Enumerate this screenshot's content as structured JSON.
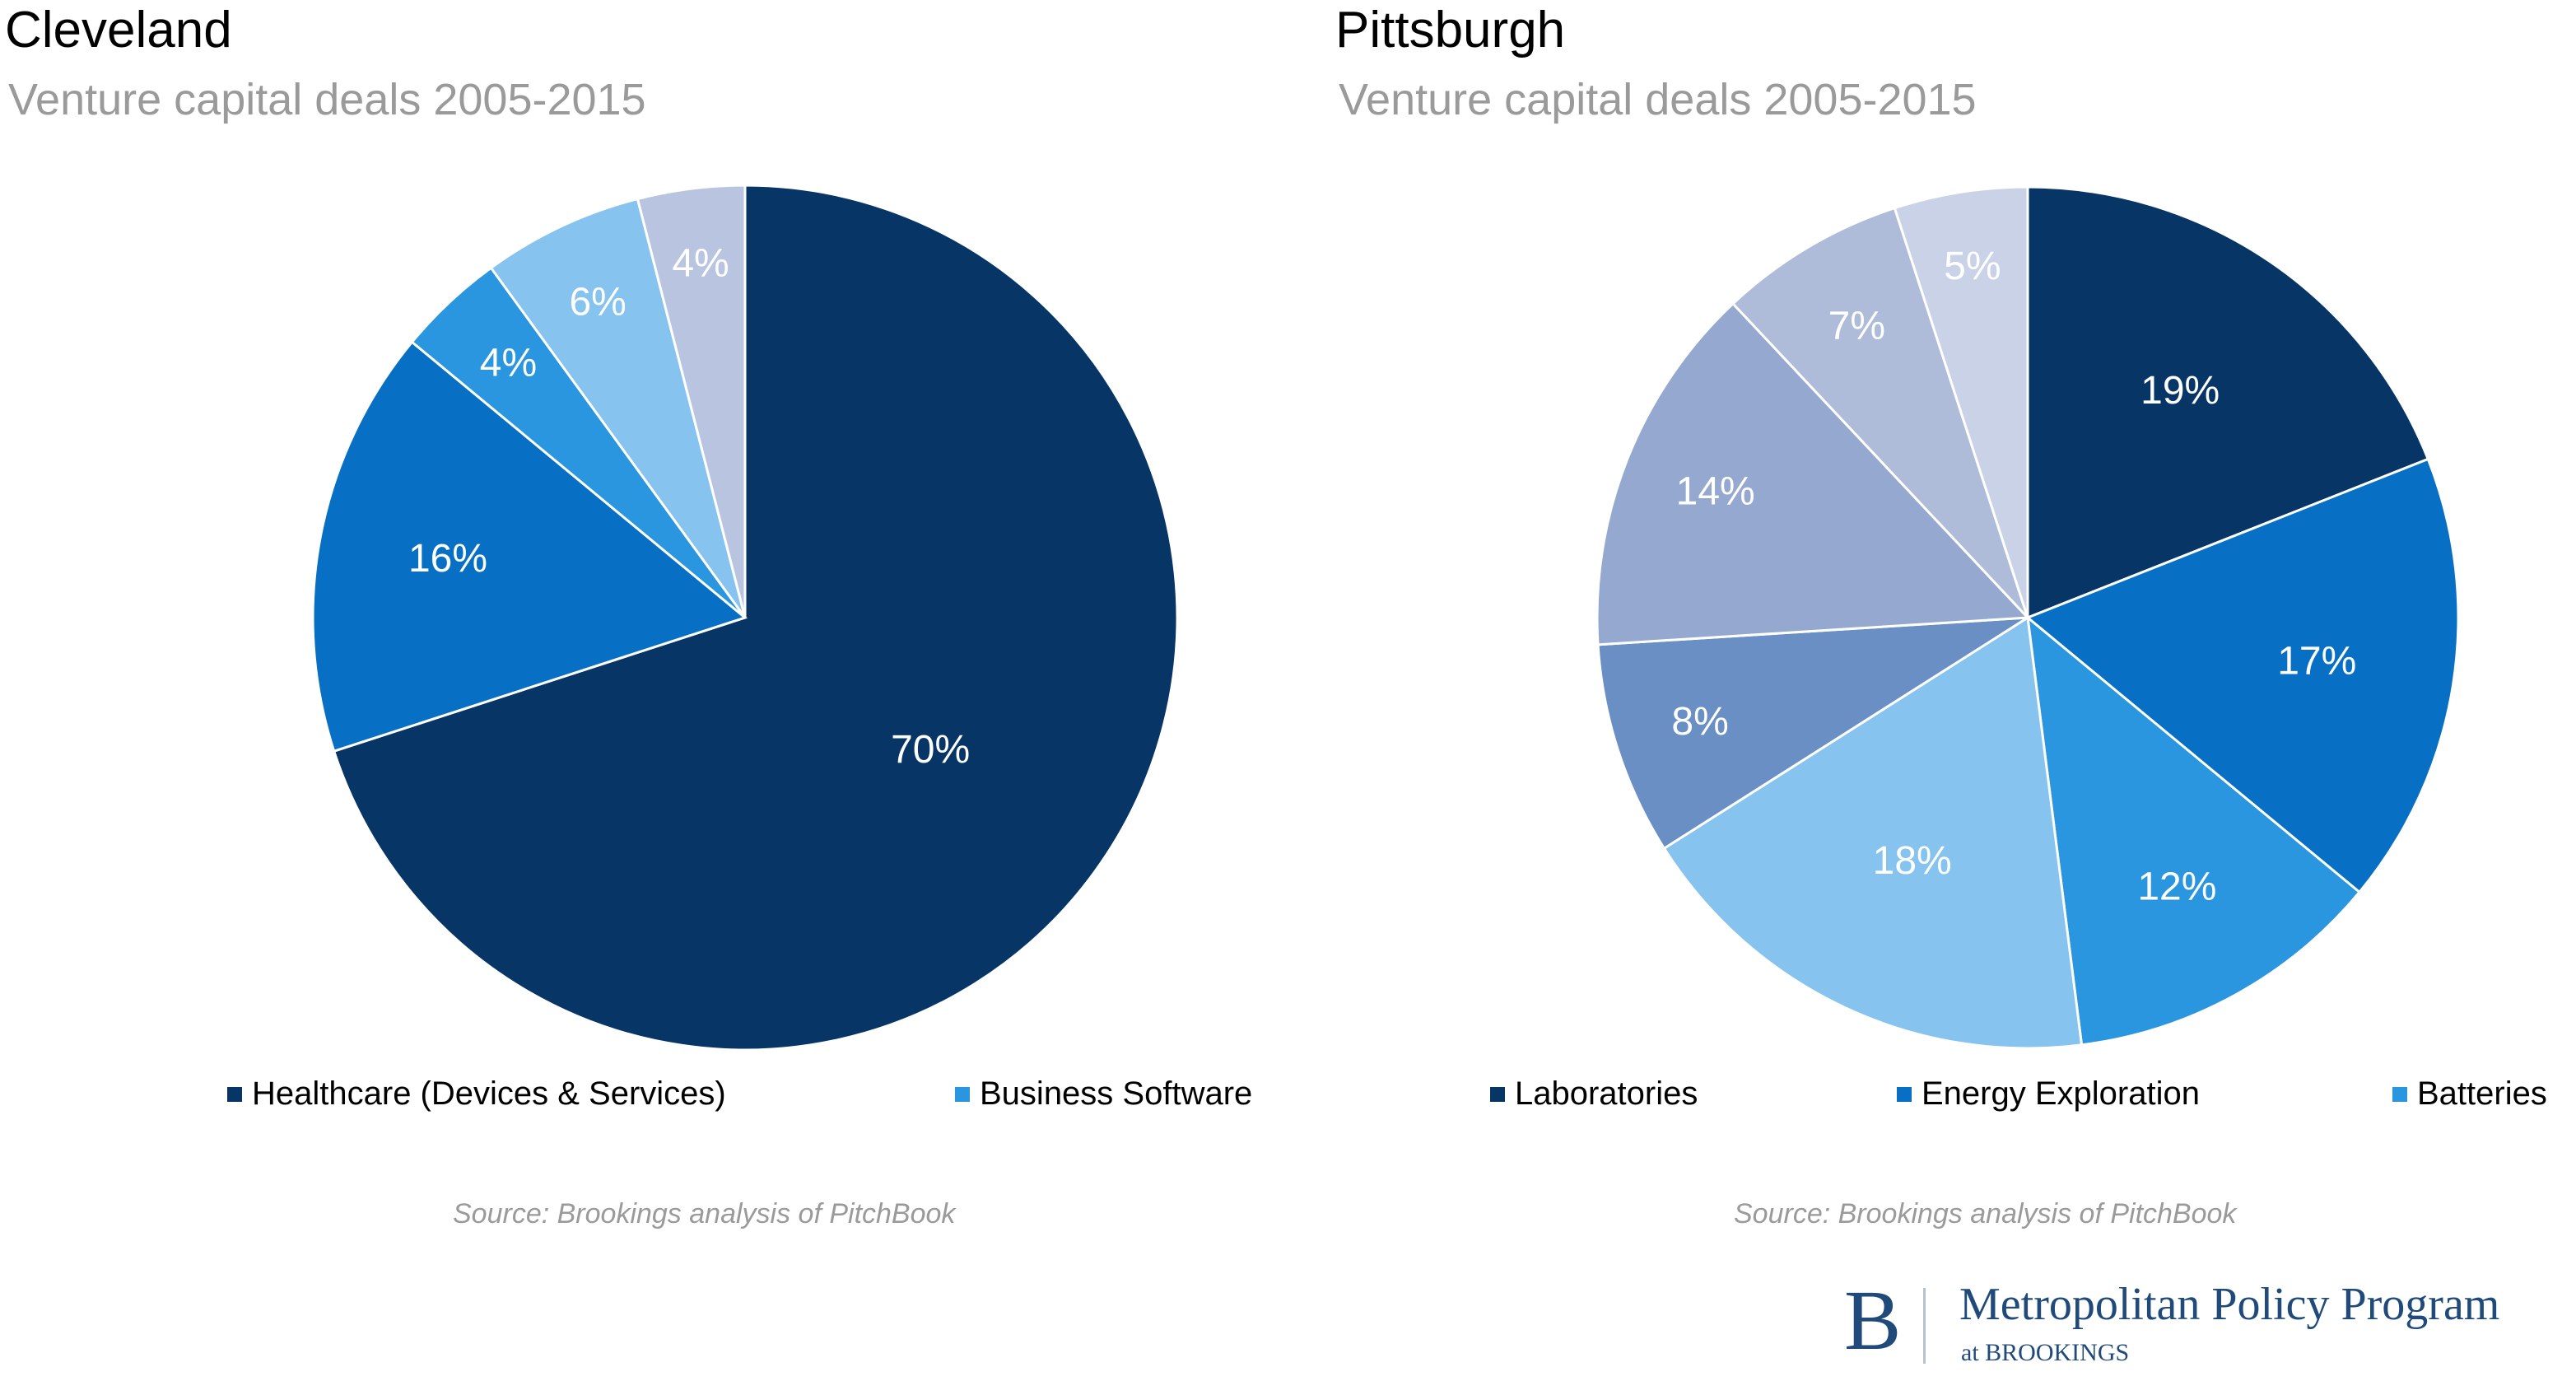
{
  "chart_data": [
    {
      "type": "pie",
      "title": "Cleveland",
      "subtitle": "Venture capital deals 2005-2015",
      "source": "Source: Brookings analysis of PitchBook",
      "slices": [
        {
          "label": "Healthcare (Devices & Services)",
          "value": 70,
          "text": "70%",
          "color": "#063566",
          "in_legend": true
        },
        {
          "label": "",
          "value": 16,
          "text": "16%",
          "color": "#0870c4",
          "in_legend": false
        },
        {
          "label": "Business Software",
          "value": 4,
          "text": "4%",
          "color": "#2a96e0",
          "in_legend": true
        },
        {
          "label": "",
          "value": 6,
          "text": "6%",
          "color": "#86c3ef",
          "in_legend": false
        },
        {
          "label": "",
          "value": 4,
          "text": "4%",
          "color": "#b9c5e0",
          "in_legend": false
        }
      ],
      "legend": [
        "Healthcare (Devices & Services)",
        "Business Software"
      ]
    },
    {
      "type": "pie",
      "title": "Pittsburgh",
      "subtitle": "Venture capital deals 2005-2015",
      "source": "Source: Brookings analysis of PitchBook",
      "slices": [
        {
          "label": "Laboratories",
          "value": 19,
          "text": "19%",
          "color": "#063566",
          "in_legend": true
        },
        {
          "label": "Energy Exploration",
          "value": 17,
          "text": "17%",
          "color": "#0870c4",
          "in_legend": true
        },
        {
          "label": "Batteries",
          "value": 12,
          "text": "12%",
          "color": "#2a96e0",
          "in_legend": true
        },
        {
          "label": "",
          "value": 18,
          "text": "18%",
          "color": "#86c3ef",
          "in_legend": false
        },
        {
          "label": "",
          "value": 8,
          "text": "8%",
          "color": "#6a8fc4",
          "in_legend": false
        },
        {
          "label": "",
          "value": 14,
          "text": "14%",
          "color": "#95a8cf",
          "in_legend": false
        },
        {
          "label": "",
          "value": 7,
          "text": "7%",
          "color": "#aebcda",
          "in_legend": false
        },
        {
          "label": "",
          "value": 5,
          "text": "5%",
          "color": "#c9d2e6",
          "in_legend": false
        }
      ],
      "legend": [
        "Laboratories",
        "Energy Exploration",
        "Batteries"
      ]
    }
  ],
  "branding": {
    "logo_letter": "B",
    "program_name": "Metropolitan Policy Program",
    "program_sub": "at BROOKINGS"
  }
}
